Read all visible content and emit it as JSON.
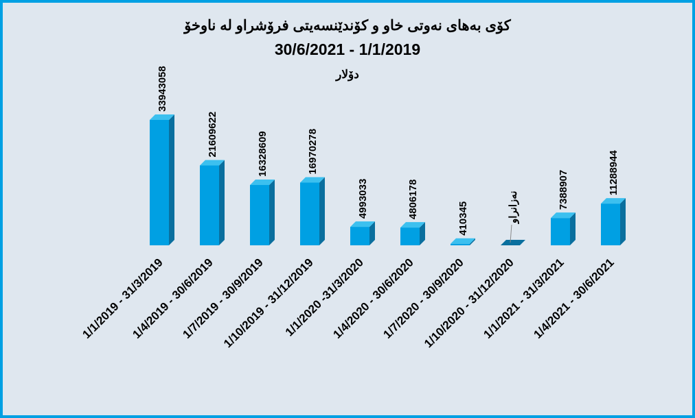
{
  "chart_data": {
    "type": "bar3d",
    "title": "کۆی بەهای نەوتی خاو و کۆندێنسەیتی فرۆشراو لە ناوخۆ",
    "subtitle": "30/6/2021 - 1/1/2019",
    "unit": "دۆلار",
    "categories": [
      "1/1/2019 - 31/3/2019",
      "1/4/2019 - 30/6/2019",
      "1/7/2019 - 30/9/2019",
      "1/10/2019 - 31/12/2019",
      "1/1/2020 -31/3/2020",
      "1/4/2020 - 30/6/2020",
      "1/7/2020 - 30/9/2020",
      "1/10/2020 - 31/12/2020",
      "1/1/2021 - 31/3/2021",
      "1/4/2021 - 30/6/2021"
    ],
    "values": [
      33943058,
      21609622,
      16328609,
      16970278,
      4993033,
      4806178,
      410345,
      null,
      7388907,
      11288944
    ],
    "value_labels": [
      "33943058",
      "21609622",
      "16328609",
      "16970278",
      "4993033",
      "4806178",
      "410345",
      "نەزانراو",
      "7388907",
      "11288944"
    ],
    "color": "#00a0e3"
  }
}
